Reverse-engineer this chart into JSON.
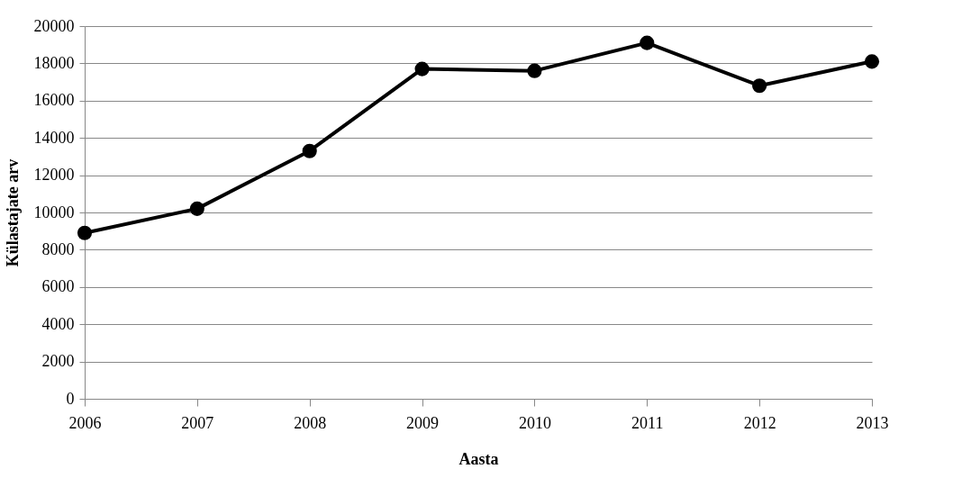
{
  "chart_data": {
    "type": "line",
    "xlabel": "Aasta",
    "ylabel": "Külastajate arv",
    "categories": [
      "2006",
      "2007",
      "2008",
      "2009",
      "2010",
      "2011",
      "2012",
      "2013"
    ],
    "series": [
      {
        "color": "#000000",
        "values": [
          8900,
          10200,
          13300,
          17700,
          17600,
          19100,
          16800,
          18100
        ]
      }
    ],
    "ylim": [
      0,
      20000
    ],
    "yticks": [
      0,
      2000,
      4000,
      6000,
      8000,
      10000,
      12000,
      14000,
      16000,
      18000,
      20000
    ],
    "grid": "y",
    "legend": false,
    "marker": "circle",
    "line_style": "solid"
  }
}
